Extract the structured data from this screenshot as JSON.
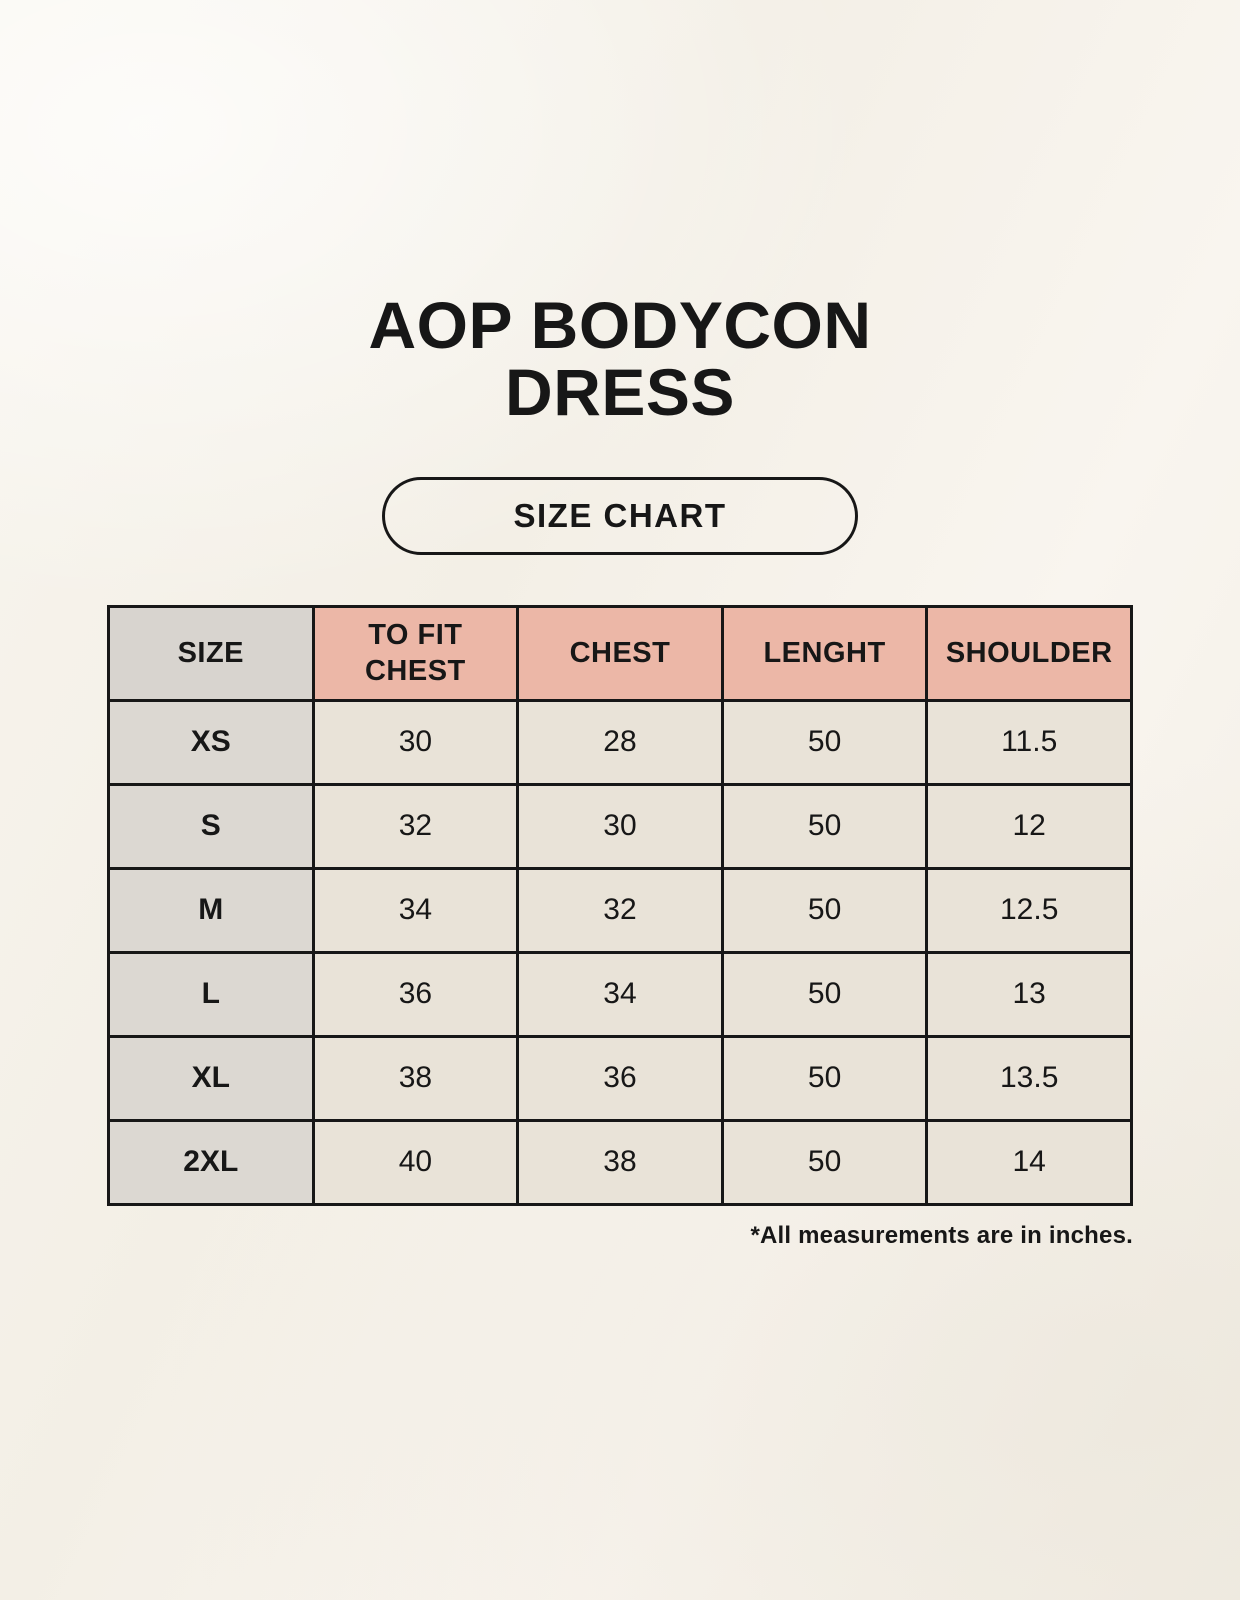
{
  "page": {
    "title": "AOP BODYCON DRESS",
    "badge_label": "SIZE CHART",
    "footnote": "*All measurements are in inches."
  },
  "chart_data": {
    "type": "table",
    "title": "AOP BODYCON DRESS — SIZE CHART",
    "columns": [
      "SIZE",
      "TO FIT CHEST",
      "CHEST",
      "LENGHT",
      "SHOULDER"
    ],
    "rows": [
      [
        "XS",
        "30",
        "28",
        "50",
        "11.5"
      ],
      [
        "S",
        "32",
        "30",
        "50",
        "12"
      ],
      [
        "M",
        "34",
        "32",
        "50",
        "12.5"
      ],
      [
        "L",
        "36",
        "34",
        "50",
        "13"
      ],
      [
        "XL",
        "38",
        "36",
        "50",
        "13.5"
      ],
      [
        "2XL",
        "40",
        "38",
        "50",
        "14"
      ]
    ],
    "units": "inches"
  },
  "colors": {
    "background": "#f6f2ea",
    "header_pink": "#ecb7a7",
    "size_header_gray": "#d8d4cf",
    "size_cell_gray": "#dcd8d2",
    "data_cell_cream": "#e9e3d8",
    "border": "#171717",
    "text": "#171717"
  }
}
